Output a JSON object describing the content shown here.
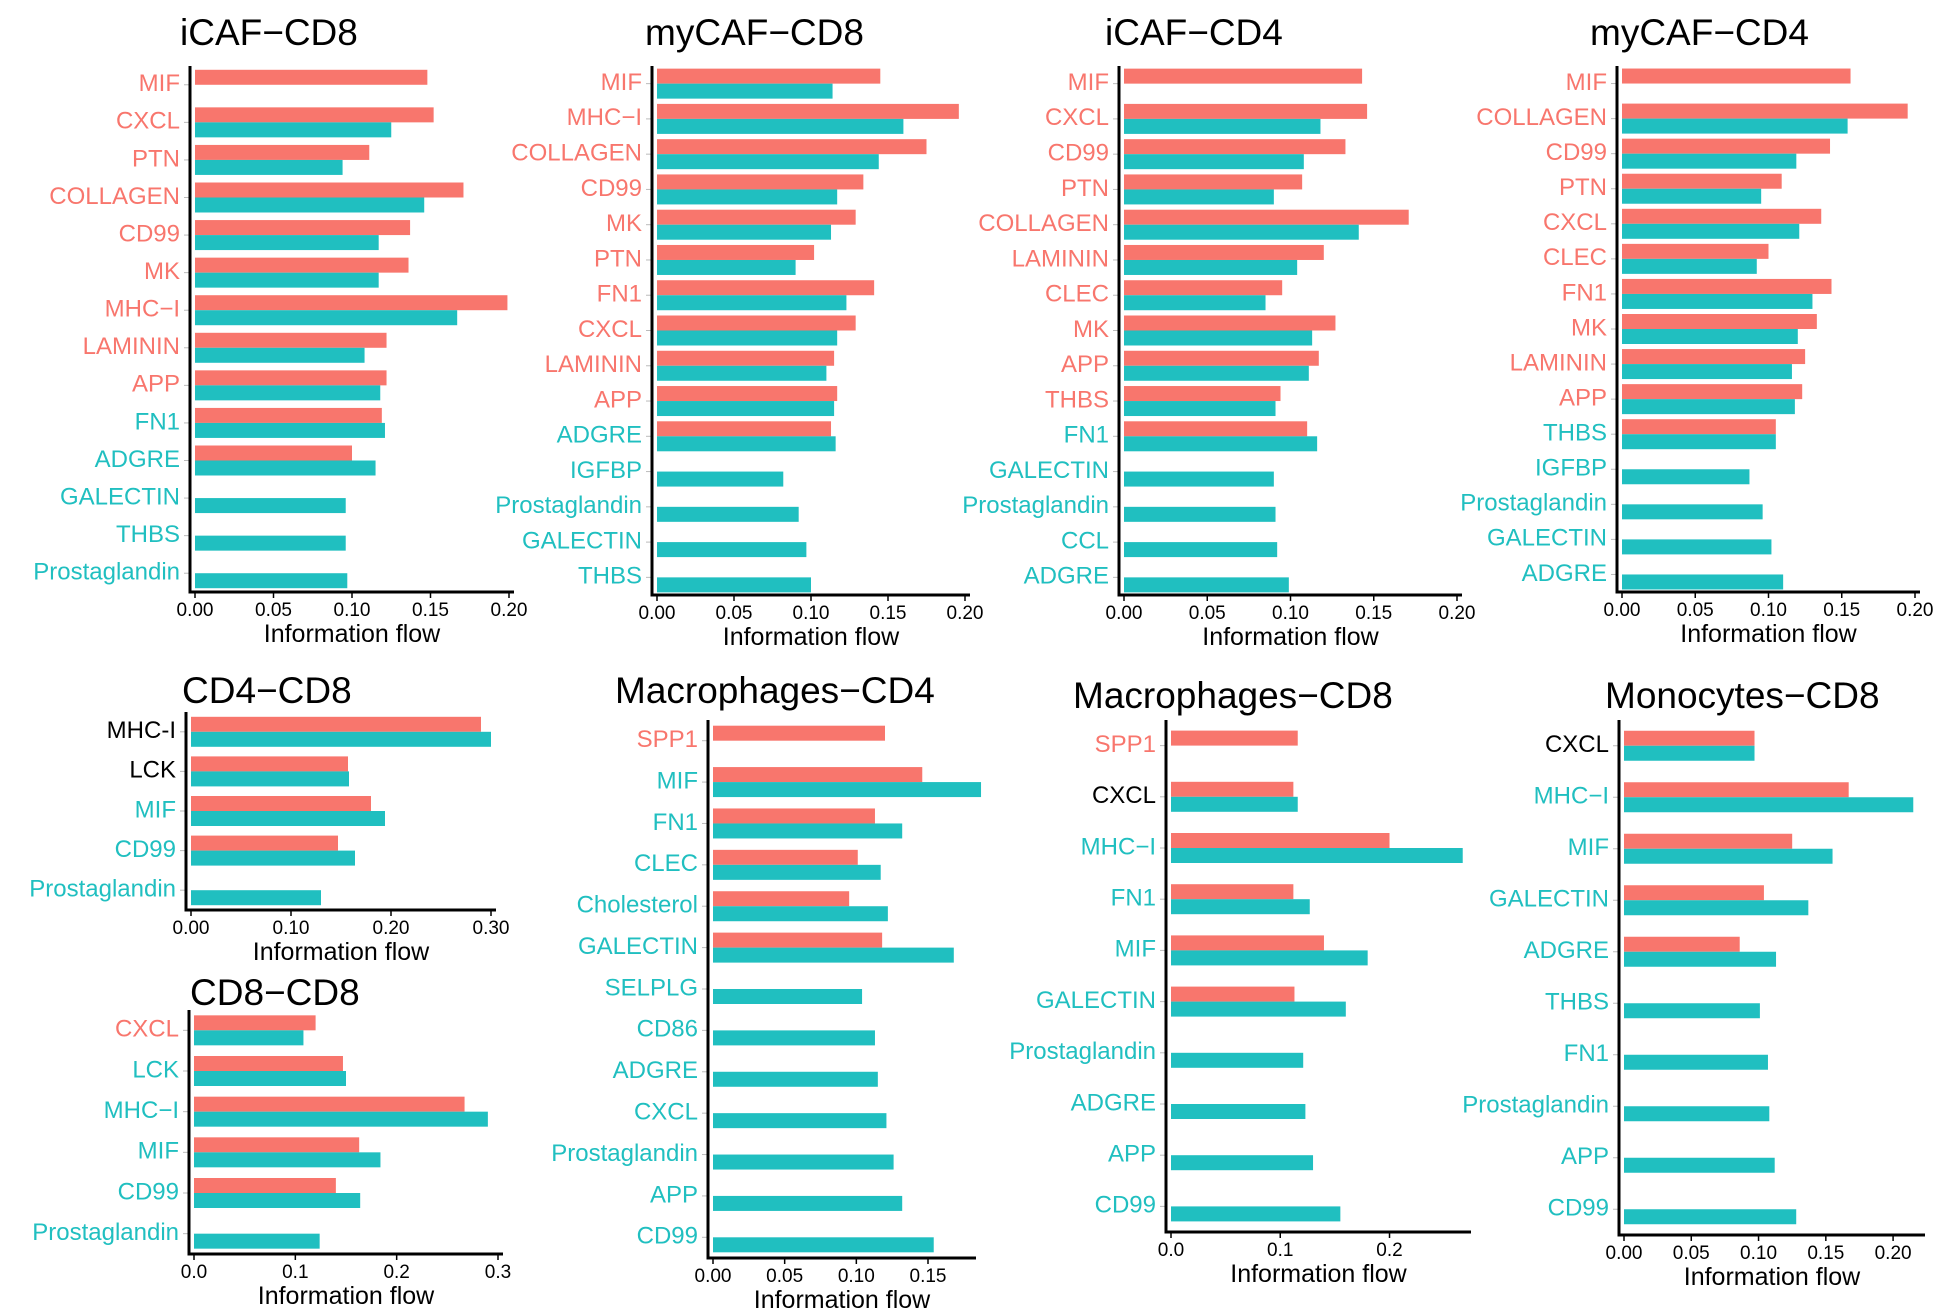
{
  "colors": {
    "red": "#F8766D",
    "teal": "#20BFC0",
    "black": "#000000"
  },
  "chart_data": [
    {
      "type": "bar",
      "title": "iCAF−CD8",
      "xlabel": "Information flow",
      "xlim": [
        0,
        0.2
      ],
      "xticks": [
        "0.00",
        "0.05",
        "0.10",
        "0.15",
        "0.20"
      ],
      "categories": [
        "MIF",
        "CXCL",
        "PTN",
        "COLLAGEN",
        "CD99",
        "MK",
        "MHC−I",
        "LAMININ",
        "APP",
        "FN1",
        "ADGRE",
        "GALECTIN",
        "THBS",
        "Prostaglandin"
      ],
      "label_colors": [
        "red",
        "red",
        "red",
        "red",
        "red",
        "red",
        "red",
        "red",
        "red",
        "teal",
        "teal",
        "teal",
        "teal",
        "teal"
      ],
      "series": [
        {
          "color": "red",
          "values": [
            0.148,
            0.152,
            0.111,
            0.171,
            0.137,
            0.136,
            0.199,
            0.122,
            0.122,
            0.119,
            0.1,
            null,
            null,
            null
          ]
        },
        {
          "color": "teal",
          "values": [
            null,
            0.125,
            0.094,
            0.146,
            0.117,
            0.117,
            0.167,
            0.108,
            0.118,
            0.121,
            0.115,
            0.096,
            0.096,
            0.097
          ]
        }
      ]
    },
    {
      "type": "bar",
      "title": "myCAF−CD8",
      "xlabel": "Information flow",
      "xlim": [
        0,
        0.2
      ],
      "xticks": [
        "0.00",
        "0.05",
        "0.10",
        "0.15",
        "0.20"
      ],
      "categories": [
        "MIF",
        "MHC−I",
        "COLLAGEN",
        "CD99",
        "MK",
        "PTN",
        "FN1",
        "CXCL",
        "LAMININ",
        "APP",
        "ADGRE",
        "IGFBP",
        "Prostaglandin",
        "GALECTIN",
        "THBS"
      ],
      "label_colors": [
        "red",
        "red",
        "red",
        "red",
        "red",
        "red",
        "red",
        "red",
        "red",
        "red",
        "teal",
        "teal",
        "teal",
        "teal",
        "teal"
      ],
      "series": [
        {
          "color": "red",
          "values": [
            0.145,
            0.196,
            0.175,
            0.134,
            0.129,
            0.102,
            0.141,
            0.129,
            0.115,
            0.117,
            0.113,
            null,
            null,
            null,
            null
          ]
        },
        {
          "color": "teal",
          "values": [
            0.114,
            0.16,
            0.144,
            0.117,
            0.113,
            0.09,
            0.123,
            0.117,
            0.11,
            0.115,
            0.116,
            0.082,
            0.092,
            0.097,
            0.1
          ]
        }
      ]
    },
    {
      "type": "bar",
      "title": "iCAF−CD4",
      "xlabel": "Information flow",
      "xlim": [
        0,
        0.2
      ],
      "xticks": [
        "0.00",
        "0.05",
        "0.10",
        "0.15",
        "0.20"
      ],
      "categories": [
        "MIF",
        "CXCL",
        "CD99",
        "PTN",
        "COLLAGEN",
        "LAMININ",
        "CLEC",
        "MK",
        "APP",
        "THBS",
        "FN1",
        "GALECTIN",
        "Prostaglandin",
        "CCL",
        "ADGRE"
      ],
      "label_colors": [
        "red",
        "red",
        "red",
        "red",
        "red",
        "red",
        "red",
        "red",
        "red",
        "red",
        "teal",
        "teal",
        "teal",
        "teal",
        "teal"
      ],
      "series": [
        {
          "color": "red",
          "values": [
            0.143,
            0.146,
            0.133,
            0.107,
            0.171,
            0.12,
            0.095,
            0.127,
            0.117,
            0.094,
            0.11,
            null,
            null,
            null,
            null
          ]
        },
        {
          "color": "teal",
          "values": [
            null,
            0.118,
            0.108,
            0.09,
            0.141,
            0.104,
            0.085,
            0.113,
            0.111,
            0.091,
            0.116,
            0.09,
            0.091,
            0.092,
            0.099
          ]
        }
      ]
    },
    {
      "type": "bar",
      "title": "myCAF−CD4",
      "xlabel": "Information flow",
      "xlim": [
        0,
        0.2
      ],
      "xticks": [
        "0.00",
        "0.05",
        "0.10",
        "0.15",
        "0.20"
      ],
      "categories": [
        "MIF",
        "COLLAGEN",
        "CD99",
        "PTN",
        "CXCL",
        "CLEC",
        "FN1",
        "MK",
        "LAMININ",
        "APP",
        "THBS",
        "IGFBP",
        "Prostaglandin",
        "GALECTIN",
        "ADGRE"
      ],
      "label_colors": [
        "red",
        "red",
        "red",
        "red",
        "red",
        "red",
        "red",
        "red",
        "red",
        "red",
        "teal",
        "teal",
        "teal",
        "teal",
        "teal"
      ],
      "series": [
        {
          "color": "red",
          "values": [
            0.156,
            0.195,
            0.142,
            0.109,
            0.136,
            0.1,
            0.143,
            0.133,
            0.125,
            0.123,
            0.105,
            null,
            null,
            null,
            null
          ]
        },
        {
          "color": "teal",
          "values": [
            null,
            0.154,
            0.119,
            0.095,
            0.121,
            0.092,
            0.13,
            0.12,
            0.116,
            0.118,
            0.105,
            0.087,
            0.096,
            0.102,
            0.11
          ]
        }
      ]
    },
    {
      "type": "bar",
      "title": "CD4−CD8",
      "xlabel": "Information flow",
      "xlim": [
        0,
        0.3
      ],
      "xticks": [
        "0.00",
        "0.10",
        "0.20",
        "0.30"
      ],
      "categories": [
        "MHC-I",
        "LCK",
        "MIF",
        "CD99",
        "Prostaglandin"
      ],
      "label_colors": [
        "black",
        "black",
        "teal",
        "teal",
        "teal"
      ],
      "series": [
        {
          "color": "red",
          "values": [
            0.29,
            0.157,
            0.18,
            0.147,
            null
          ]
        },
        {
          "color": "teal",
          "values": [
            0.3,
            0.158,
            0.194,
            0.164,
            0.13
          ]
        }
      ]
    },
    {
      "type": "bar",
      "title": "CD8−CD8",
      "xlabel": "Information flow",
      "xlim": [
        0,
        0.3
      ],
      "xticks": [
        "0.0",
        "0.1",
        "0.2",
        "0.3"
      ],
      "categories": [
        "CXCL",
        "LCK",
        "MHC−I",
        "MIF",
        "CD99",
        "Prostaglandin"
      ],
      "label_colors": [
        "red",
        "teal",
        "teal",
        "teal",
        "teal",
        "teal"
      ],
      "series": [
        {
          "color": "red",
          "values": [
            0.12,
            0.147,
            0.267,
            0.163,
            0.14,
            null
          ]
        },
        {
          "color": "teal",
          "values": [
            0.108,
            0.15,
            0.29,
            0.184,
            0.164,
            0.124
          ]
        }
      ]
    },
    {
      "type": "bar",
      "title": "Macrophages−CD4",
      "xlabel": "Information flow",
      "xlim": [
        0,
        0.18
      ],
      "xticks": [
        "0.00",
        "0.05",
        "0.10",
        "0.15"
      ],
      "categories": [
        "SPP1",
        "MIF",
        "FN1",
        "CLEC",
        "Cholesterol",
        "GALECTIN",
        "SELPLG",
        "CD86",
        "ADGRE",
        "CXCL",
        "Prostaglandin",
        "APP",
        "CD99"
      ],
      "label_colors": [
        "red",
        "teal",
        "teal",
        "teal",
        "teal",
        "teal",
        "teal",
        "teal",
        "teal",
        "teal",
        "teal",
        "teal",
        "teal"
      ],
      "series": [
        {
          "color": "red",
          "values": [
            0.12,
            0.146,
            0.113,
            0.101,
            0.095,
            0.118,
            null,
            null,
            null,
            null,
            null,
            null,
            null
          ]
        },
        {
          "color": "teal",
          "values": [
            null,
            0.187,
            0.132,
            0.117,
            0.122,
            0.168,
            0.104,
            0.113,
            0.115,
            0.121,
            0.126,
            0.132,
            0.154
          ]
        }
      ]
    },
    {
      "type": "bar",
      "title": "Macrophages−CD8",
      "xlabel": "Information flow",
      "xlim": [
        0,
        0.27
      ],
      "xticks": [
        "0.0",
        "0.1",
        "0.2"
      ],
      "categories": [
        "SPP1",
        "CXCL",
        "MHC−I",
        "FN1",
        "MIF",
        "GALECTIN",
        "Prostaglandin",
        "ADGRE",
        "APP",
        "CD99"
      ],
      "label_colors": [
        "red",
        "black",
        "teal",
        "teal",
        "teal",
        "teal",
        "teal",
        "teal",
        "teal",
        "teal"
      ],
      "series": [
        {
          "color": "red",
          "values": [
            0.116,
            0.112,
            0.2,
            0.112,
            0.14,
            0.113,
            null,
            null,
            null,
            null
          ]
        },
        {
          "color": "teal",
          "values": [
            null,
            0.116,
            0.267,
            0.127,
            0.18,
            0.16,
            0.121,
            0.123,
            0.13,
            0.155
          ]
        }
      ]
    },
    {
      "type": "bar",
      "title": "Monocytes−CD8",
      "xlabel": "Information flow",
      "xlim": [
        0,
        0.22
      ],
      "xticks": [
        "0.00",
        "0.05",
        "0.10",
        "0.15",
        "0.20"
      ],
      "categories": [
        "CXCL",
        "MHC−I",
        "MIF",
        "GALECTIN",
        "ADGRE",
        "THBS",
        "FN1",
        "Prostaglandin",
        "APP",
        "CD99"
      ],
      "label_colors": [
        "black",
        "teal",
        "teal",
        "teal",
        "teal",
        "teal",
        "teal",
        "teal",
        "teal",
        "teal"
      ],
      "series": [
        {
          "color": "red",
          "values": [
            0.097,
            0.167,
            0.125,
            0.104,
            0.086,
            null,
            null,
            null,
            null,
            null
          ]
        },
        {
          "color": "teal",
          "values": [
            0.097,
            0.215,
            0.155,
            0.137,
            0.113,
            0.101,
            0.107,
            0.108,
            0.112,
            0.128
          ]
        }
      ]
    }
  ]
}
